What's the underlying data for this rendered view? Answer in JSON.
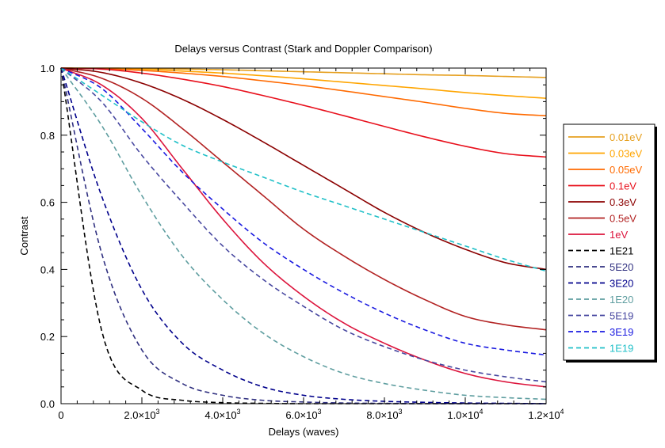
{
  "chart_data": {
    "type": "line",
    "title": "Delays versus Contrast (Stark and Doppler Comparison)",
    "xlabel": "Delays (waves)",
    "ylabel": "Contrast",
    "xlim": [
      0,
      12000
    ],
    "ylim": [
      0,
      1.0
    ],
    "grid": false,
    "legend_position": "right",
    "x_ticks": [
      {
        "value": 0,
        "mant": "0",
        "exp": ""
      },
      {
        "value": 2000,
        "mant": "2.0×10",
        "exp": "3"
      },
      {
        "value": 4000,
        "mant": "4.0×10",
        "exp": "3"
      },
      {
        "value": 6000,
        "mant": "6.0×10",
        "exp": "3"
      },
      {
        "value": 8000,
        "mant": "8.0×10",
        "exp": "3"
      },
      {
        "value": 10000,
        "mant": "1.0×10",
        "exp": "4"
      },
      {
        "value": 12000,
        "mant": "1.2×10",
        "exp": "4"
      }
    ],
    "y_ticks": [
      "0.0",
      "0.2",
      "0.4",
      "0.6",
      "0.8",
      "1.0"
    ],
    "x": [
      0,
      1000,
      2000,
      3000,
      4000,
      5000,
      6000,
      7000,
      8000,
      9000,
      10000,
      11000,
      12000
    ],
    "series": [
      {
        "name": "0.01eV",
        "color": "#e6a020",
        "dash": "solid",
        "values": [
          1.0,
          1.0,
          0.999,
          0.997,
          0.995,
          0.992,
          0.989,
          0.986,
          0.983,
          0.98,
          0.978,
          0.975,
          0.972
        ]
      },
      {
        "name": "0.03eV",
        "color": "#ffa500",
        "dash": "solid",
        "values": [
          1.0,
          0.999,
          0.997,
          0.991,
          0.985,
          0.977,
          0.968,
          0.958,
          0.948,
          0.938,
          0.927,
          0.918,
          0.91
        ]
      },
      {
        "name": "0.05eV",
        "color": "#ff6a00",
        "dash": "solid",
        "values": [
          1.0,
          0.998,
          0.993,
          0.985,
          0.975,
          0.962,
          0.948,
          0.932,
          0.915,
          0.898,
          0.88,
          0.865,
          0.858
        ]
      },
      {
        "name": "0.1eV",
        "color": "#e8101c",
        "dash": "solid",
        "values": [
          1.0,
          0.997,
          0.985,
          0.967,
          0.945,
          0.918,
          0.889,
          0.858,
          0.826,
          0.795,
          0.767,
          0.745,
          0.735
        ]
      },
      {
        "name": "0.3eV",
        "color": "#8b0000",
        "dash": "solid",
        "values": [
          1.0,
          0.987,
          0.955,
          0.907,
          0.847,
          0.78,
          0.71,
          0.64,
          0.57,
          0.51,
          0.46,
          0.42,
          0.4
        ]
      },
      {
        "name": "0.5eV",
        "color": "#b22222",
        "dash": "solid",
        "values": [
          1.0,
          0.97,
          0.91,
          0.82,
          0.72,
          0.62,
          0.52,
          0.44,
          0.37,
          0.31,
          0.26,
          0.235,
          0.22
        ]
      },
      {
        "name": "1eV",
        "color": "#dc143c",
        "dash": "solid",
        "values": [
          1.0,
          0.95,
          0.85,
          0.7,
          0.55,
          0.42,
          0.32,
          0.24,
          0.18,
          0.13,
          0.09,
          0.065,
          0.05
        ]
      },
      {
        "name": "1E21",
        "color": "#000000",
        "dash": "dashed",
        "values": [
          1.0,
          0.22,
          0.04,
          0.01,
          0.003,
          0.001,
          0.0,
          0.0,
          0.0,
          0.0,
          0.0,
          0.0,
          0.0
        ]
      },
      {
        "name": "5E20",
        "color": "#303080",
        "dash": "dashed",
        "values": [
          1.0,
          0.45,
          0.16,
          0.06,
          0.025,
          0.01,
          0.005,
          0.002,
          0.001,
          0.0,
          0.0,
          0.0,
          0.0
        ]
      },
      {
        "name": "3E20",
        "color": "#00008b",
        "dash": "dashed",
        "values": [
          1.0,
          0.62,
          0.34,
          0.18,
          0.1,
          0.05,
          0.025,
          0.013,
          0.007,
          0.004,
          0.002,
          0.001,
          0.0
        ]
      },
      {
        "name": "1E20",
        "color": "#5f9ea0",
        "dash": "dashed",
        "values": [
          1.0,
          0.83,
          0.62,
          0.44,
          0.31,
          0.21,
          0.14,
          0.09,
          0.06,
          0.04,
          0.025,
          0.018,
          0.013
        ]
      },
      {
        "name": "5E19",
        "color": "#4848a0",
        "dash": "dashed",
        "values": [
          1.0,
          0.9,
          0.74,
          0.6,
          0.47,
          0.37,
          0.29,
          0.22,
          0.17,
          0.13,
          0.1,
          0.08,
          0.065
        ]
      },
      {
        "name": "3E19",
        "color": "#1a1ae0",
        "dash": "dashed",
        "values": [
          1.0,
          0.94,
          0.82,
          0.69,
          0.58,
          0.48,
          0.4,
          0.33,
          0.27,
          0.22,
          0.18,
          0.16,
          0.145
        ]
      },
      {
        "name": "1E19",
        "color": "#20c0c8",
        "dash": "dashed",
        "values": [
          1.0,
          0.92,
          0.84,
          0.77,
          0.72,
          0.675,
          0.63,
          0.59,
          0.55,
          0.51,
          0.47,
          0.43,
          0.395
        ]
      }
    ]
  }
}
